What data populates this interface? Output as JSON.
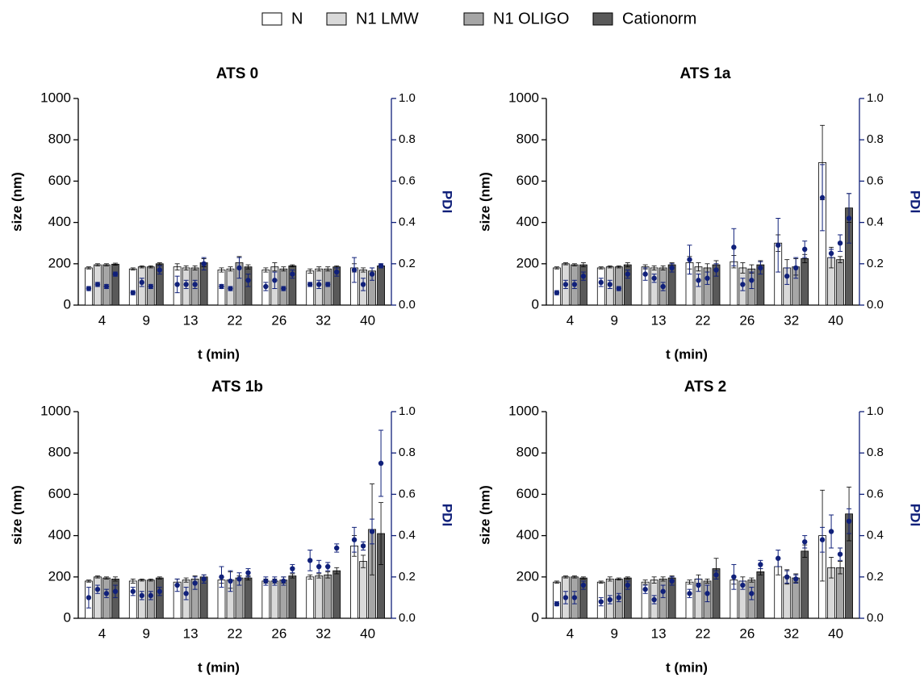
{
  "legend": {
    "series": [
      {
        "name": "N",
        "color": "#ffffff"
      },
      {
        "name": "N1 LMW",
        "color": "#d9d9d9"
      },
      {
        "name": "N1 OLIGO",
        "color": "#a6a6a6"
      },
      {
        "name": "Cationorm",
        "color": "#595959"
      }
    ]
  },
  "chart_data": [
    {
      "type": "bar",
      "title": "ATS 0",
      "xlabel": "t (min)",
      "ylabel": "size (nm)",
      "y2label": "PDI",
      "pdi_color": "#10207a",
      "categories": [
        "4",
        "9",
        "13",
        "22",
        "26",
        "32",
        "40"
      ],
      "ylim": [
        0,
        1000
      ],
      "yticks": [
        0,
        200,
        400,
        600,
        800,
        1000
      ],
      "y2lim": [
        0,
        1
      ],
      "y2ticks": [
        {
          "value": 0,
          "label": "0.0"
        },
        0.2,
        0.4,
        0.6,
        0.8,
        {
          "value": 1,
          "label": "1.0"
        }
      ],
      "series": [
        {
          "values": [
            180,
            175,
            185,
            170,
            170,
            165,
            180
          ],
          "errors": [
            5,
            5,
            15,
            10,
            10,
            10,
            20
          ],
          "pdi": [
            0.08,
            0.06,
            0.1,
            0.09,
            0.09,
            0.1,
            0.17
          ],
          "pdi_errors": [
            0.01,
            0.01,
            0.04,
            0.01,
            0.02,
            0.01,
            0.06
          ]
        },
        {
          "values": [
            195,
            185,
            180,
            175,
            185,
            175,
            170
          ],
          "errors": [
            5,
            5,
            10,
            10,
            20,
            10,
            10
          ],
          "pdi": [
            0.1,
            0.11,
            0.1,
            0.08,
            0.12,
            0.1,
            0.1
          ],
          "pdi_errors": [
            0.01,
            0.02,
            0.02,
            0.01,
            0.04,
            0.02,
            0.03
          ]
        },
        {
          "values": [
            195,
            185,
            180,
            205,
            175,
            175,
            165
          ],
          "errors": [
            5,
            5,
            10,
            30,
            10,
            10,
            15
          ],
          "pdi": [
            0.09,
            0.09,
            0.1,
            0.18,
            0.08,
            0.1,
            0.15
          ],
          "pdi_errors": [
            0.01,
            0.01,
            0.02,
            0.05,
            0.01,
            0.01,
            0.03
          ]
        },
        {
          "values": [
            198,
            200,
            205,
            185,
            190,
            185,
            190
          ],
          "errors": [
            5,
            5,
            20,
            10,
            5,
            5,
            10
          ],
          "pdi": [
            0.15,
            0.17,
            0.2,
            0.12,
            0.15,
            0.16,
            0.19
          ],
          "pdi_errors": [
            0.01,
            0.02,
            0.03,
            0.03,
            0.02,
            0.02,
            0.01
          ]
        }
      ]
    },
    {
      "type": "bar",
      "title": "ATS 1a",
      "xlabel": "t (min)",
      "ylabel": "size (nm)",
      "y2label": "PDI",
      "pdi_color": "#10207a",
      "categories": [
        "4",
        "9",
        "13",
        "22",
        "26",
        "32",
        "40"
      ],
      "ylim": [
        0,
        1000
      ],
      "yticks": [
        0,
        200,
        400,
        600,
        800,
        1000
      ],
      "y2lim": [
        0,
        1
      ],
      "y2ticks": [
        {
          "value": 0,
          "label": "0.0"
        },
        0.2,
        0.4,
        0.6,
        0.8,
        {
          "value": 1,
          "label": "1.0"
        }
      ],
      "series": [
        {
          "values": [
            180,
            180,
            185,
            205,
            210,
            300,
            690
          ],
          "errors": [
            5,
            5,
            10,
            30,
            30,
            40,
            180
          ],
          "pdi": [
            0.06,
            0.11,
            0.15,
            0.22,
            0.28,
            0.29,
            0.52
          ],
          "pdi_errors": [
            0.01,
            0.02,
            0.03,
            0.07,
            0.09,
            0.13,
            0.16
          ]
        },
        {
          "values": [
            200,
            185,
            180,
            185,
            180,
            180,
            230
          ],
          "errors": [
            5,
            5,
            10,
            20,
            25,
            40,
            50
          ],
          "pdi": [
            0.1,
            0.1,
            0.13,
            0.12,
            0.1,
            0.14,
            0.25
          ],
          "pdi_errors": [
            0.02,
            0.02,
            0.02,
            0.03,
            0.03,
            0.04,
            0.02
          ]
        },
        {
          "values": [
            195,
            185,
            180,
            180,
            175,
            185,
            220
          ],
          "errors": [
            5,
            5,
            10,
            20,
            20,
            40,
            15
          ],
          "pdi": [
            0.1,
            0.08,
            0.09,
            0.13,
            0.12,
            0.18,
            0.3
          ],
          "pdi_errors": [
            0.02,
            0.01,
            0.02,
            0.03,
            0.04,
            0.05,
            0.04
          ]
        },
        {
          "values": [
            195,
            195,
            195,
            195,
            195,
            225,
            470
          ],
          "errors": [
            10,
            10,
            10,
            20,
            20,
            20,
            70
          ],
          "pdi": [
            0.14,
            0.15,
            0.18,
            0.17,
            0.18,
            0.27,
            0.42
          ],
          "pdi_errors": [
            0.02,
            0.02,
            0.02,
            0.03,
            0.03,
            0.04,
            0.12
          ]
        }
      ]
    },
    {
      "type": "bar",
      "title": "ATS 1b",
      "xlabel": "t (min)",
      "ylabel": "size (nm)",
      "y2label": "PDI",
      "pdi_color": "#10207a",
      "categories": [
        "4",
        "9",
        "13",
        "22",
        "26",
        "32",
        "40"
      ],
      "ylim": [
        0,
        1000
      ],
      "yticks": [
        0,
        200,
        400,
        600,
        800,
        1000
      ],
      "y2lim": [
        0,
        1
      ],
      "y2ticks": [
        {
          "value": 0,
          "label": "0.0"
        },
        0.2,
        0.4,
        0.6,
        0.8,
        {
          "value": 1,
          "label": "1.0"
        }
      ],
      "series": [
        {
          "values": [
            180,
            180,
            175,
            185,
            180,
            200,
            350
          ],
          "errors": [
            5,
            10,
            15,
            15,
            10,
            10,
            50
          ],
          "pdi": [
            0.1,
            0.13,
            0.16,
            0.2,
            0.18,
            0.28,
            0.38
          ],
          "pdi_errors": [
            0.05,
            0.02,
            0.03,
            0.05,
            0.02,
            0.05,
            0.06
          ]
        },
        {
          "values": [
            200,
            185,
            185,
            185,
            180,
            205,
            275
          ],
          "errors": [
            5,
            5,
            10,
            40,
            10,
            10,
            30
          ],
          "pdi": [
            0.14,
            0.11,
            0.12,
            0.18,
            0.18,
            0.25,
            0.35
          ],
          "pdi_errors": [
            0.02,
            0.02,
            0.03,
            0.05,
            0.02,
            0.03,
            0.02
          ]
        },
        {
          "values": [
            195,
            185,
            190,
            195,
            185,
            210,
            430
          ],
          "errors": [
            5,
            5,
            15,
            10,
            15,
            15,
            220
          ],
          "pdi": [
            0.12,
            0.11,
            0.17,
            0.19,
            0.18,
            0.25,
            0.42
          ],
          "pdi_errors": [
            0.02,
            0.02,
            0.03,
            0.03,
            0.02,
            0.02,
            0.06
          ]
        },
        {
          "values": [
            190,
            195,
            200,
            195,
            205,
            230,
            410
          ],
          "errors": [
            10,
            5,
            10,
            10,
            10,
            15,
            150
          ],
          "pdi": [
            0.13,
            0.13,
            0.19,
            0.22,
            0.24,
            0.34,
            0.75
          ],
          "pdi_errors": [
            0.03,
            0.02,
            0.02,
            0.02,
            0.02,
            0.02,
            0.16
          ]
        }
      ]
    },
    {
      "type": "bar",
      "title": "ATS 2",
      "xlabel": "t (min)",
      "ylabel": "size (nm)",
      "y2label": "PDI",
      "pdi_color": "#10207a",
      "categories": [
        "4",
        "9",
        "13",
        "22",
        "26",
        "32",
        "40"
      ],
      "ylim": [
        0,
        1000
      ],
      "yticks": [
        0,
        200,
        400,
        600,
        800,
        1000
      ],
      "y2lim": [
        0,
        1
      ],
      "y2ticks": [
        {
          "value": 0,
          "label": "0.0"
        },
        0.2,
        0.4,
        0.6,
        0.8,
        {
          "value": 1,
          "label": "1.0"
        }
      ],
      "series": [
        {
          "values": [
            175,
            175,
            175,
            175,
            185,
            250,
            400
          ],
          "errors": [
            5,
            5,
            10,
            10,
            20,
            40,
            220
          ],
          "pdi": [
            0.07,
            0.08,
            0.14,
            0.12,
            0.2,
            0.29,
            0.38
          ],
          "pdi_errors": [
            0.01,
            0.02,
            0.02,
            0.02,
            0.06,
            0.04,
            0.06
          ]
        },
        {
          "values": [
            200,
            190,
            185,
            190,
            180,
            200,
            245
          ],
          "errors": [
            5,
            10,
            15,
            20,
            20,
            35,
            50
          ],
          "pdi": [
            0.1,
            0.09,
            0.09,
            0.16,
            0.16,
            0.2,
            0.42
          ],
          "pdi_errors": [
            0.03,
            0.02,
            0.02,
            0.03,
            0.02,
            0.03,
            0.08
          ]
        },
        {
          "values": [
            200,
            190,
            190,
            180,
            185,
            195,
            245
          ],
          "errors": [
            5,
            5,
            10,
            10,
            10,
            20,
            30
          ],
          "pdi": [
            0.1,
            0.1,
            0.13,
            0.12,
            0.12,
            0.19,
            0.31
          ],
          "pdi_errors": [
            0.03,
            0.02,
            0.03,
            0.04,
            0.03,
            0.02,
            0.03
          ]
        },
        {
          "values": [
            195,
            195,
            195,
            240,
            225,
            325,
            505
          ],
          "errors": [
            5,
            5,
            10,
            50,
            15,
            30,
            130
          ],
          "pdi": [
            0.16,
            0.16,
            0.18,
            0.21,
            0.26,
            0.37,
            0.47
          ],
          "pdi_errors": [
            0.02,
            0.02,
            0.02,
            0.02,
            0.02,
            0.03,
            0.06
          ]
        }
      ]
    }
  ]
}
